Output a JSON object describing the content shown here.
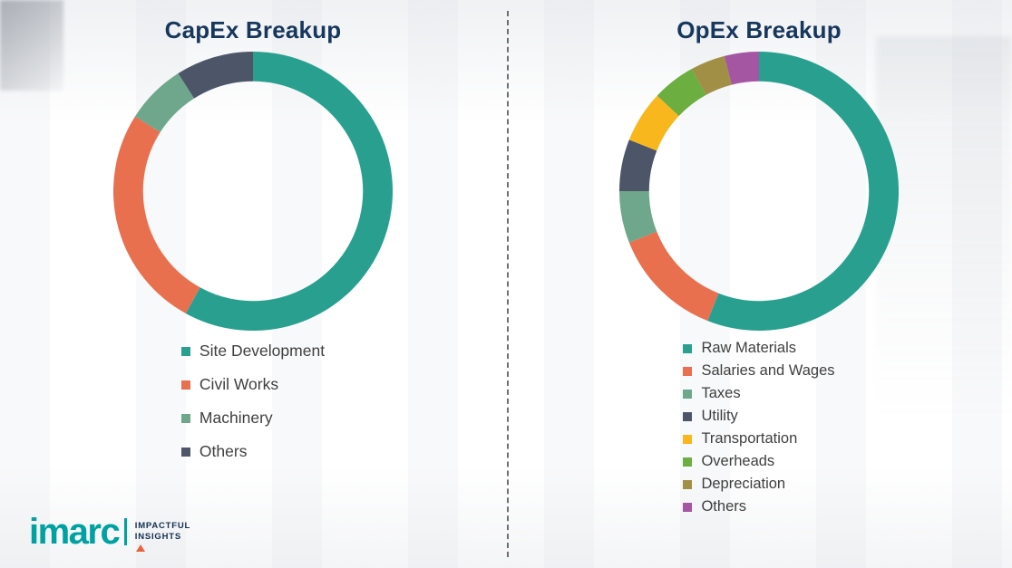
{
  "logo": {
    "brand": "imarc",
    "tagline_line1": "IMPACTFUL",
    "tagline_line2": "INSIGHTS",
    "brand_color": "#00a1a1",
    "accent_color": "#e8633f"
  },
  "title_color": "#17375d",
  "chart_data": [
    {
      "type": "pie",
      "subtype": "donut",
      "title": "CapEx Breakup",
      "labels": [
        "Site Development",
        "Civil Works",
        "Machinery",
        "Others"
      ],
      "values": [
        58,
        26,
        7,
        9
      ],
      "colors": [
        "#29A08F",
        "#E8704F",
        "#6FA78C",
        "#4D5569"
      ],
      "legend_position": "bottom-left",
      "start_angle": "top",
      "direction": "clockwise"
    },
    {
      "type": "pie",
      "subtype": "donut",
      "title": "OpEx Breakup",
      "labels": [
        "Raw Materials",
        "Salaries and Wages",
        "Taxes",
        "Utility",
        "Transportation",
        "Overheads",
        "Depreciation",
        "Others"
      ],
      "values": [
        56,
        13,
        6,
        6,
        6,
        5,
        4,
        4
      ],
      "colors": [
        "#29A08F",
        "#E8704F",
        "#6FA78C",
        "#4D5569",
        "#F7B71D",
        "#6CAE3F",
        "#A18F45",
        "#A456A3"
      ],
      "legend_position": "bottom-left",
      "start_angle": "top",
      "direction": "clockwise"
    }
  ]
}
